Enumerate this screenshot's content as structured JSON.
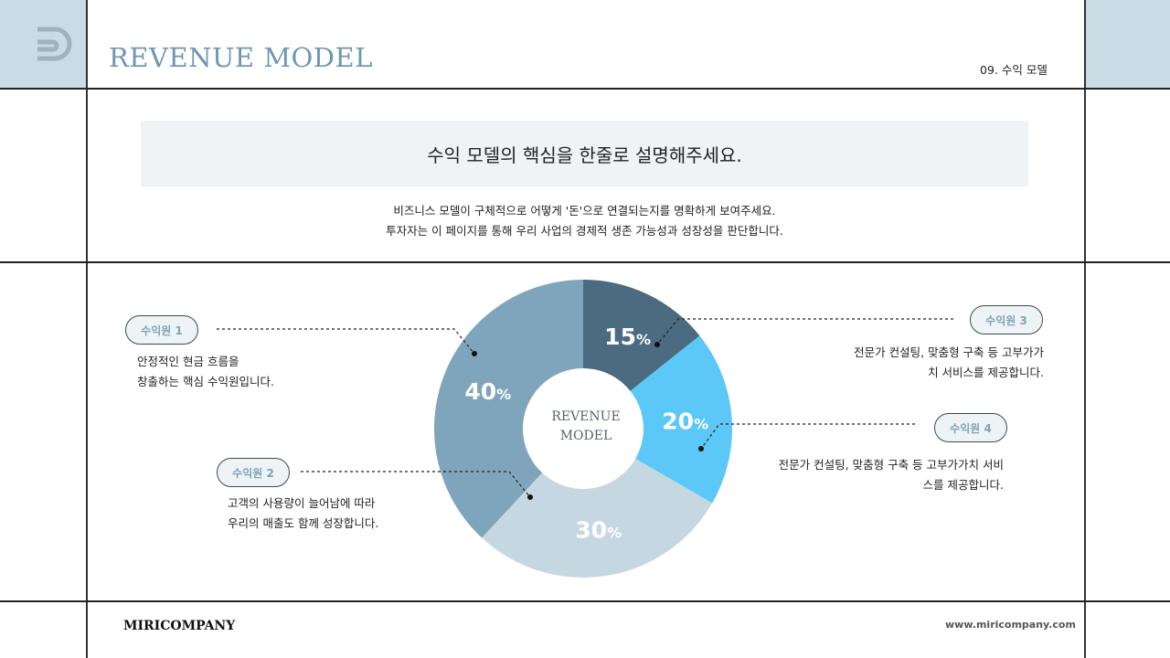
{
  "header": {
    "title": "REVENUE MODEL",
    "page_label": "09. 수익 모델",
    "logo": "D-logo-icon"
  },
  "intro": {
    "headline": "수익 모델의 핵심을 한줄로 설명해주세요.",
    "lines": [
      "비즈니스 모델이 구체적으로 어떻게 '돈'으로 연결되는지를 명확하게 보여주세요.",
      "투자자는 이 페이지를 통해 우리 사업의 경제적 생존 가능성과 성장성을 판단합니다."
    ]
  },
  "sources": [
    {
      "label": "수익원 1",
      "lines": [
        "안정적인 현금 흐름을",
        "창출하는 핵심 수익원입니다."
      ]
    },
    {
      "label": "수익원 2",
      "lines": [
        "고객의 사용량이 늘어남에 따라",
        "우리의 매출도 함께 성장합니다."
      ]
    },
    {
      "label": "수익원 3",
      "lines": [
        "전문가 컨설팅, 맞춤형 구축 등 고부가가",
        "치 서비스를 제공합니다."
      ]
    },
    {
      "label": "수익원 4",
      "lines": [
        "전문가 컨설팅, 맞춤형 구축 등 고부가가치 서비",
        "스를 제공합니다."
      ]
    }
  ],
  "chart_data": {
    "type": "pie",
    "center_label": [
      "REVENUE",
      "MODEL"
    ],
    "slices": [
      {
        "value": 15,
        "label": "15",
        "color": "#4a6b80"
      },
      {
        "value": 20,
        "label": "20",
        "color": "#5bc8f7"
      },
      {
        "value": 30,
        "label": "30",
        "color": "#c5d8e2"
      },
      {
        "value": 40,
        "label": "40",
        "color": "#7fa5bc"
      }
    ],
    "unit": "%"
  },
  "footer": {
    "company": "MIRICOMPANY",
    "url": "www.miricompany.com"
  }
}
